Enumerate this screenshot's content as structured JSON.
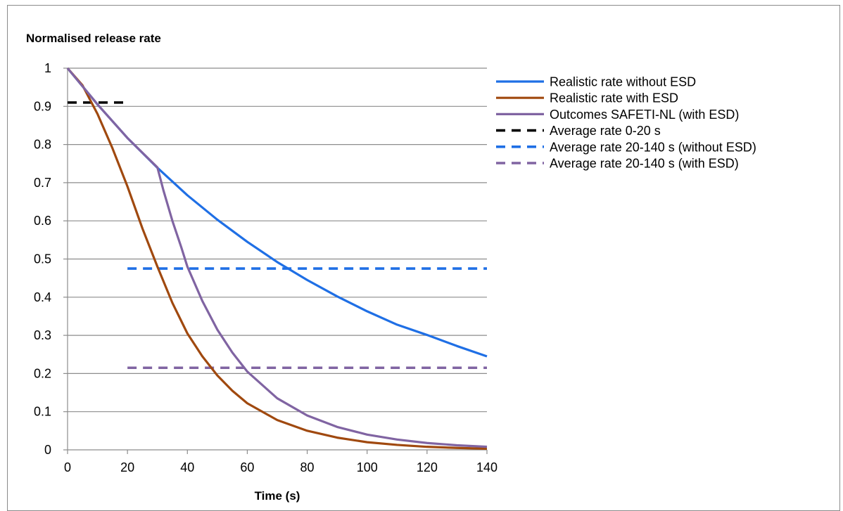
{
  "chart_data": {
    "type": "line",
    "title": "",
    "ylabel": "Normalised release rate",
    "xlabel": "Time (s)",
    "xlim": [
      0,
      140
    ],
    "ylim": [
      0,
      1
    ],
    "xticks": [
      0,
      20,
      40,
      60,
      80,
      100,
      120,
      140
    ],
    "yticks": [
      0,
      0.1,
      0.2,
      0.3,
      0.4,
      0.5,
      0.6,
      0.7,
      0.8,
      0.9,
      1
    ],
    "ytick_labels": [
      "0",
      "0.1",
      "0.2",
      "0.3",
      "0.4",
      "0.5",
      "0.6",
      "0.7",
      "0.8",
      "0.9",
      "1"
    ],
    "xtick_labels": [
      "0",
      "20",
      "40",
      "60",
      "80",
      "100",
      "120",
      "140"
    ],
    "grid": "horizontal",
    "legend_position": "right",
    "series": [
      {
        "name": "Realistic rate without ESD",
        "color": "#1f6fe5",
        "style": "solid",
        "x": [
          0,
          10,
          20,
          30,
          40,
          50,
          60,
          70,
          80,
          90,
          100,
          110,
          120,
          130,
          140
        ],
        "y": [
          1.0,
          0.905,
          0.817,
          0.739,
          0.667,
          0.603,
          0.545,
          0.492,
          0.445,
          0.402,
          0.363,
          0.328,
          0.301,
          0.272,
          0.245
        ]
      },
      {
        "name": "Realistic rate with ESD",
        "color": "#a0490f",
        "style": "solid",
        "x": [
          0,
          5,
          10,
          15,
          20,
          25,
          30,
          35,
          40,
          45,
          50,
          55,
          60,
          70,
          80,
          90,
          100,
          110,
          120,
          130,
          140
        ],
        "y": [
          1.0,
          0.955,
          0.88,
          0.79,
          0.69,
          0.58,
          0.48,
          0.385,
          0.305,
          0.245,
          0.195,
          0.155,
          0.122,
          0.078,
          0.05,
          0.032,
          0.02,
          0.013,
          0.008,
          0.005,
          0.003
        ]
      },
      {
        "name": "Outcomes SAFETI-NL (with ESD)",
        "color": "#8064a2",
        "style": "solid",
        "x": [
          0,
          10,
          20,
          30,
          32,
          35,
          38,
          40,
          45,
          50,
          55,
          60,
          70,
          80,
          90,
          100,
          110,
          120,
          130,
          140
        ],
        "y": [
          1.0,
          0.905,
          0.817,
          0.74,
          0.68,
          0.6,
          0.53,
          0.48,
          0.39,
          0.315,
          0.255,
          0.205,
          0.135,
          0.09,
          0.06,
          0.04,
          0.027,
          0.018,
          0.012,
          0.008
        ]
      },
      {
        "name": "Average rate 0-20 s",
        "color": "#000000",
        "style": "dashed",
        "x": [
          0,
          20
        ],
        "y": [
          0.91,
          0.91
        ]
      },
      {
        "name": "Average rate 20-140 s (without ESD)",
        "color": "#1f6fe5",
        "style": "dashed",
        "x": [
          20,
          140
        ],
        "y": [
          0.475,
          0.475
        ]
      },
      {
        "name": "Average rate 20-140 s (with ESD)",
        "color": "#8064a2",
        "style": "dashed",
        "x": [
          20,
          140
        ],
        "y": [
          0.215,
          0.215
        ]
      }
    ]
  }
}
